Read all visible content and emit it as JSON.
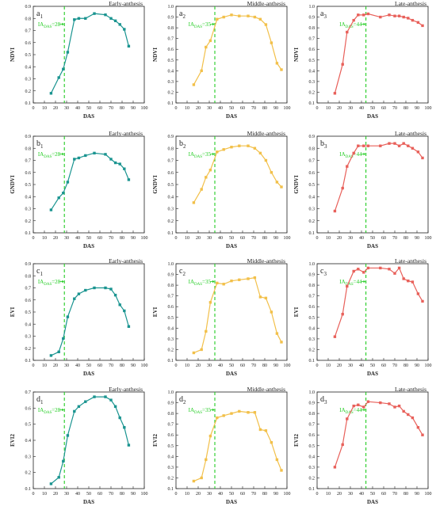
{
  "chart_data": [
    {
      "type": "line",
      "panel_label": "a",
      "panel_sub": "1",
      "title": "Early-anthesis",
      "xlabel": "DAS",
      "ylabel": "NDVI",
      "xlim": [
        0,
        100
      ],
      "ylim": [
        0.1,
        0.9
      ],
      "xticks": [
        0,
        10,
        20,
        30,
        40,
        50,
        60,
        70,
        80,
        90,
        100
      ],
      "yticks": [
        0.1,
        0.2,
        0.3,
        0.4,
        0.5,
        0.6,
        0.7,
        0.8,
        0.9
      ],
      "annotation": {
        "prefix": "IA",
        "sub": "DAS",
        "suffix": "=28",
        "x": 28
      },
      "color": "#1a9490",
      "x": [
        16,
        23,
        27,
        31,
        37,
        41,
        47,
        55,
        65,
        70,
        74,
        78,
        82,
        86
      ],
      "y": [
        0.18,
        0.31,
        0.38,
        0.52,
        0.79,
        0.8,
        0.8,
        0.84,
        0.83,
        0.8,
        0.78,
        0.75,
        0.71,
        0.57
      ]
    },
    {
      "type": "line",
      "panel_label": "a",
      "panel_sub": "2",
      "title": "Middle-anthesis",
      "xlabel": "DAS",
      "ylabel": "NDVI",
      "xlim": [
        0,
        100
      ],
      "ylim": [
        0.1,
        1.0
      ],
      "xticks": [
        0,
        10,
        20,
        30,
        40,
        50,
        60,
        70,
        80,
        90,
        100
      ],
      "yticks": [
        0.1,
        0.2,
        0.3,
        0.4,
        0.5,
        0.6,
        0.7,
        0.8,
        0.9,
        1.0
      ],
      "annotation": {
        "prefix": "IA",
        "sub": "DAS",
        "suffix": "=35",
        "x": 35
      },
      "color": "#f2c04a",
      "x": [
        16,
        23,
        27,
        31,
        37,
        43,
        50,
        57,
        65,
        71,
        76,
        81,
        86,
        91,
        95
      ],
      "y": [
        0.27,
        0.4,
        0.62,
        0.68,
        0.88,
        0.9,
        0.92,
        0.91,
        0.91,
        0.9,
        0.88,
        0.83,
        0.66,
        0.47,
        0.41
      ]
    },
    {
      "type": "line",
      "panel_label": "a",
      "panel_sub": "3",
      "title": "Late-anthesis",
      "xlabel": "DAS",
      "ylabel": "NDVI",
      "xlim": [
        0,
        100
      ],
      "ylim": [
        0.1,
        1.0
      ],
      "xticks": [
        0,
        10,
        20,
        30,
        40,
        50,
        60,
        70,
        80,
        90,
        100
      ],
      "yticks": [
        0.1,
        0.2,
        0.3,
        0.4,
        0.5,
        0.6,
        0.7,
        0.8,
        0.9,
        1.0
      ],
      "annotation": {
        "prefix": "IA",
        "sub": "DAS",
        "suffix": "=44",
        "x": 44
      },
      "color": "#e8605a",
      "x": [
        16,
        23,
        27,
        33,
        37,
        42,
        46,
        57,
        65,
        70,
        74,
        78,
        82,
        86,
        91,
        95
      ],
      "y": [
        0.19,
        0.46,
        0.76,
        0.87,
        0.92,
        0.92,
        0.93,
        0.9,
        0.92,
        0.91,
        0.91,
        0.9,
        0.89,
        0.87,
        0.85,
        0.82
      ]
    },
    {
      "type": "line",
      "panel_label": "b",
      "panel_sub": "1",
      "title": "Early-anthesis",
      "xlabel": "DAS",
      "ylabel": "GNDVI",
      "xlim": [
        0,
        100
      ],
      "ylim": [
        0.1,
        0.9
      ],
      "xticks": [
        0,
        10,
        20,
        30,
        40,
        50,
        60,
        70,
        80,
        90,
        100
      ],
      "yticks": [
        0.1,
        0.2,
        0.3,
        0.4,
        0.5,
        0.6,
        0.7,
        0.8,
        0.9
      ],
      "annotation": {
        "prefix": "IA",
        "sub": "DAS",
        "suffix": "=28",
        "x": 28
      },
      "color": "#1a9490",
      "x": [
        16,
        23,
        27,
        31,
        37,
        41,
        47,
        55,
        65,
        70,
        74,
        78,
        82,
        86
      ],
      "y": [
        0.29,
        0.39,
        0.43,
        0.52,
        0.71,
        0.72,
        0.74,
        0.76,
        0.75,
        0.71,
        0.68,
        0.67,
        0.63,
        0.54
      ]
    },
    {
      "type": "line",
      "panel_label": "b",
      "panel_sub": "2",
      "title": "Middle-anthesis",
      "xlabel": "DAS",
      "ylabel": "GNDVI",
      "xlim": [
        0,
        100
      ],
      "ylim": [
        0.1,
        0.9
      ],
      "xticks": [
        0,
        10,
        20,
        30,
        40,
        50,
        60,
        70,
        80,
        90,
        100
      ],
      "yticks": [
        0.1,
        0.2,
        0.3,
        0.4,
        0.5,
        0.6,
        0.7,
        0.8,
        0.9
      ],
      "annotation": {
        "prefix": "IA",
        "sub": "DAS",
        "suffix": "=35",
        "x": 35
      },
      "color": "#f2c04a",
      "x": [
        16,
        23,
        27,
        31,
        37,
        43,
        50,
        57,
        65,
        71,
        76,
        81,
        86,
        91,
        95
      ],
      "y": [
        0.35,
        0.46,
        0.56,
        0.62,
        0.77,
        0.79,
        0.81,
        0.82,
        0.82,
        0.8,
        0.76,
        0.7,
        0.6,
        0.52,
        0.48
      ]
    },
    {
      "type": "line",
      "panel_label": "b",
      "panel_sub": "3",
      "title": "Late-anthesis",
      "xlabel": "DAS",
      "ylabel": "GNDVI",
      "xlim": [
        0,
        100
      ],
      "ylim": [
        0.1,
        0.9
      ],
      "xticks": [
        0,
        10,
        20,
        30,
        40,
        50,
        60,
        70,
        80,
        90,
        100
      ],
      "yticks": [
        0.1,
        0.2,
        0.3,
        0.4,
        0.5,
        0.6,
        0.7,
        0.8,
        0.9
      ],
      "annotation": {
        "prefix": "IA",
        "sub": "DAS",
        "suffix": "=44",
        "x": 44
      },
      "color": "#e8605a",
      "x": [
        16,
        23,
        27,
        33,
        37,
        42,
        46,
        57,
        65,
        70,
        74,
        78,
        82,
        86,
        91,
        95
      ],
      "y": [
        0.28,
        0.47,
        0.65,
        0.76,
        0.82,
        0.82,
        0.82,
        0.82,
        0.84,
        0.84,
        0.82,
        0.84,
        0.82,
        0.8,
        0.77,
        0.72
      ]
    },
    {
      "type": "line",
      "panel_label": "c",
      "panel_sub": "1",
      "title": "Early-anthesis",
      "xlabel": "DAS",
      "ylabel": "EVI",
      "xlim": [
        0,
        100
      ],
      "ylim": [
        0.1,
        0.9
      ],
      "xticks": [
        0,
        10,
        20,
        30,
        40,
        50,
        60,
        70,
        80,
        90,
        100
      ],
      "yticks": [
        0.1,
        0.2,
        0.3,
        0.4,
        0.5,
        0.6,
        0.7,
        0.8,
        0.9
      ],
      "annotation": {
        "prefix": "IA",
        "sub": "DAS",
        "suffix": "=28",
        "x": 28
      },
      "color": "#1a9490",
      "x": [
        16,
        23,
        27,
        31,
        37,
        41,
        47,
        55,
        65,
        70,
        74,
        78,
        82,
        86
      ],
      "y": [
        0.14,
        0.17,
        0.28,
        0.46,
        0.61,
        0.65,
        0.68,
        0.7,
        0.7,
        0.69,
        0.64,
        0.56,
        0.51,
        0.38
      ]
    },
    {
      "type": "line",
      "panel_label": "c",
      "panel_sub": "2",
      "title": "Middle-anthesis",
      "xlabel": "DAS",
      "ylabel": "EVI",
      "xlim": [
        0,
        100
      ],
      "ylim": [
        0.1,
        1.0
      ],
      "xticks": [
        0,
        10,
        20,
        30,
        40,
        50,
        60,
        70,
        80,
        90,
        100
      ],
      "yticks": [
        0.1,
        0.2,
        0.3,
        0.4,
        0.5,
        0.6,
        0.7,
        0.8,
        0.9,
        1.0
      ],
      "annotation": {
        "prefix": "IA",
        "sub": "DAS",
        "suffix": "=35",
        "x": 35
      },
      "color": "#f2c04a",
      "x": [
        16,
        23,
        27,
        31,
        37,
        43,
        50,
        57,
        65,
        71,
        76,
        81,
        86,
        91,
        95
      ],
      "y": [
        0.17,
        0.2,
        0.37,
        0.64,
        0.82,
        0.81,
        0.84,
        0.85,
        0.86,
        0.87,
        0.69,
        0.68,
        0.55,
        0.35,
        0.27
      ]
    },
    {
      "type": "line",
      "panel_label": "c",
      "panel_sub": "3",
      "title": "Late-anthesis",
      "xlabel": "DAS",
      "ylabel": "EVI",
      "xlim": [
        0,
        100
      ],
      "ylim": [
        0.1,
        1.0
      ],
      "xticks": [
        0,
        10,
        20,
        30,
        40,
        50,
        60,
        70,
        80,
        90,
        100
      ],
      "yticks": [
        0.1,
        0.2,
        0.3,
        0.4,
        0.5,
        0.6,
        0.7,
        0.8,
        0.9,
        1.0
      ],
      "annotation": {
        "prefix": "IA",
        "sub": "DAS",
        "suffix": "=44",
        "x": 44
      },
      "color": "#e8605a",
      "x": [
        16,
        23,
        27,
        33,
        37,
        42,
        46,
        57,
        65,
        70,
        74,
        78,
        82,
        86,
        91,
        95
      ],
      "y": [
        0.32,
        0.53,
        0.79,
        0.93,
        0.95,
        0.92,
        0.96,
        0.96,
        0.95,
        0.91,
        0.96,
        0.86,
        0.84,
        0.83,
        0.72,
        0.65
      ]
    },
    {
      "type": "line",
      "panel_label": "d",
      "panel_sub": "1",
      "title": "Early-anthesis",
      "xlabel": "DAS",
      "ylabel": "EVI2",
      "xlim": [
        0,
        100
      ],
      "ylim": [
        0.1,
        0.7
      ],
      "xticks": [
        0,
        10,
        20,
        30,
        40,
        50,
        60,
        70,
        80,
        90,
        100
      ],
      "yticks": [
        0.1,
        0.2,
        0.3,
        0.4,
        0.5,
        0.6,
        0.7
      ],
      "annotation": {
        "prefix": "IA",
        "sub": "DAS",
        "suffix": "=28",
        "x": 28
      },
      "color": "#1a9490",
      "x": [
        16,
        23,
        27,
        31,
        37,
        41,
        47,
        55,
        65,
        70,
        74,
        78,
        82,
        86
      ],
      "y": [
        0.13,
        0.17,
        0.27,
        0.43,
        0.58,
        0.61,
        0.64,
        0.67,
        0.67,
        0.65,
        0.61,
        0.54,
        0.48,
        0.37
      ]
    },
    {
      "type": "line",
      "panel_label": "d",
      "panel_sub": "2",
      "title": "Middle-anthesis",
      "xlabel": "DAS",
      "ylabel": "EVI2",
      "xlim": [
        0,
        100
      ],
      "ylim": [
        0.1,
        1.0
      ],
      "xticks": [
        0,
        10,
        20,
        30,
        40,
        50,
        60,
        70,
        80,
        90,
        100
      ],
      "yticks": [
        0.1,
        0.2,
        0.3,
        0.4,
        0.5,
        0.6,
        0.7,
        0.8,
        0.9,
        1.0
      ],
      "annotation": {
        "prefix": "IA",
        "sub": "DAS",
        "suffix": "=35",
        "x": 35
      },
      "color": "#f2c04a",
      "x": [
        16,
        23,
        27,
        31,
        37,
        43,
        50,
        57,
        65,
        71,
        76,
        81,
        86,
        91,
        95
      ],
      "y": [
        0.17,
        0.2,
        0.37,
        0.59,
        0.76,
        0.78,
        0.8,
        0.82,
        0.81,
        0.81,
        0.65,
        0.64,
        0.53,
        0.37,
        0.27
      ]
    },
    {
      "type": "line",
      "panel_label": "d",
      "panel_sub": "3",
      "title": "Late-anthesis",
      "xlabel": "DAS",
      "ylabel": "EVI2",
      "xlim": [
        0,
        100
      ],
      "ylim": [
        0.1,
        1.0
      ],
      "xticks": [
        0,
        10,
        20,
        30,
        40,
        50,
        60,
        70,
        80,
        90,
        100
      ],
      "yticks": [
        0.1,
        0.2,
        0.3,
        0.4,
        0.5,
        0.6,
        0.7,
        0.8,
        0.9,
        1.0
      ],
      "annotation": {
        "prefix": "IA",
        "sub": "DAS",
        "suffix": "=44",
        "x": 44
      },
      "color": "#e8605a",
      "x": [
        16,
        23,
        27,
        33,
        37,
        42,
        46,
        57,
        65,
        70,
        74,
        78,
        82,
        86,
        91,
        95
      ],
      "y": [
        0.3,
        0.51,
        0.75,
        0.87,
        0.88,
        0.86,
        0.91,
        0.9,
        0.89,
        0.86,
        0.87,
        0.82,
        0.79,
        0.76,
        0.67,
        0.6
      ]
    }
  ],
  "marker_line_color": "#22cc22"
}
